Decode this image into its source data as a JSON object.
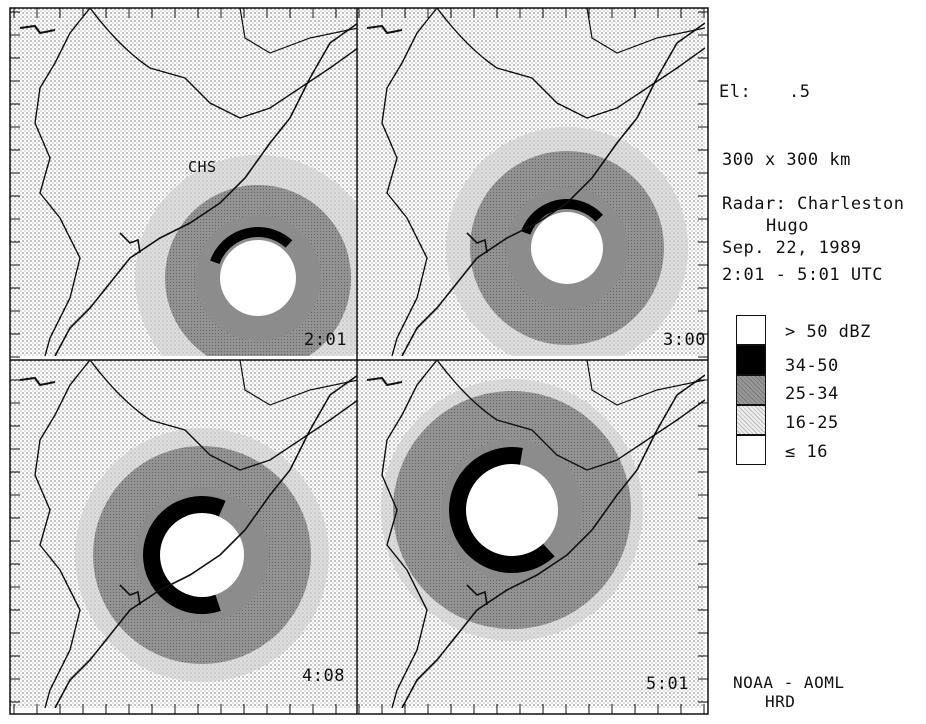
{
  "panels": [
    {
      "time": "2:01"
    },
    {
      "time": "3:00"
    },
    {
      "time": "4:08"
    },
    {
      "time": "5:01"
    }
  ],
  "station_label": "CHS",
  "info": {
    "elevation_label": "El:",
    "elevation_value": ".5",
    "domain": "300 x 300 km",
    "radar": "Radar: Charleston",
    "storm": "Hugo",
    "date": "Sep. 22, 1989",
    "time_range": "2:01 - 5:01 UTC"
  },
  "legend": [
    {
      "label": "> 50 dBZ",
      "color": "#ffffff"
    },
    {
      "label": "34-50",
      "color": "#000000"
    },
    {
      "label": "25-34",
      "color": "#8c8c8c"
    },
    {
      "label": "16-25",
      "color": "#dcdcdc"
    },
    {
      "label": "≤ 16",
      "color": "#ffffff"
    }
  ],
  "credit": {
    "line1": "NOAA - AOML",
    "line2": "HRD"
  },
  "colors": {
    "line": "#111111",
    "echo_heavy": "#000000",
    "echo_moderate": "#8c8c8c",
    "echo_light": "#dcdcdc"
  }
}
